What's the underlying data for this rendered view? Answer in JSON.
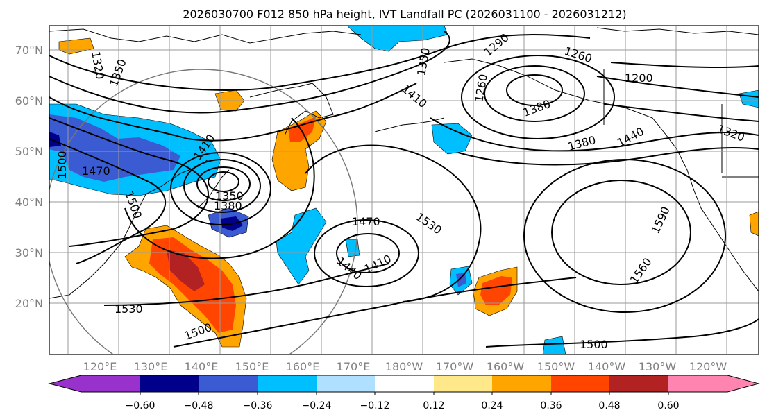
{
  "title": "2026030700 F012 850 hPa height, IVT Landfall PC (2026031100 - 2026031212)",
  "colors": {
    "neg_060": "#9932cc",
    "neg_048": "#00008b",
    "neg_036": "#3a5bd1",
    "neg_024": "#00bfff",
    "neg_012": "#b0e0ff",
    "neutral": "#ffffff",
    "pos_012": "#ffe88a",
    "pos_024": "#ffa500",
    "pos_036": "#ff4500",
    "pos_048": "#b22222",
    "pos_060": "#ff85b0"
  },
  "lon_labels": [
    "120°E",
    "130°E",
    "140°E",
    "150°E",
    "160°E",
    "170°E",
    "180°W",
    "170°W",
    "160°W",
    "150°W",
    "140°W",
    "130°W",
    "120°W"
  ],
  "lat_labels": [
    "70°N",
    "60°N",
    "50°N",
    "40°N",
    "30°N",
    "20°N"
  ],
  "contour_labels": {
    "c1320a": "1320",
    "c1350a": "1350",
    "c1350b": "1350",
    "c1290": "1290",
    "c1260": "1260",
    "c1200": "1200",
    "c1260b": "1260",
    "c1320b": "1320",
    "c1380a": "1380",
    "c1440a": "1440",
    "c1410a": "1410",
    "c1500a": "1500",
    "c1470a": "1470",
    "c1410b": "1410",
    "c1350c": "1350",
    "c1380b": "1380",
    "c1500b": "1500",
    "c1470b": "1470",
    "c1530a": "1530",
    "c1440b": "1440",
    "c1410c": "1410",
    "c1590": "1590",
    "c1560": "1560",
    "c1530b": "1530",
    "c1500c": "1500",
    "c1500d": "1500",
    "c1380c": "1380"
  },
  "colorbar": {
    "ticks": [
      "−0.60",
      "−0.48",
      "−0.36",
      "−0.24",
      "−0.12",
      "0.12",
      "0.24",
      "0.36",
      "0.48",
      "0.60"
    ]
  }
}
